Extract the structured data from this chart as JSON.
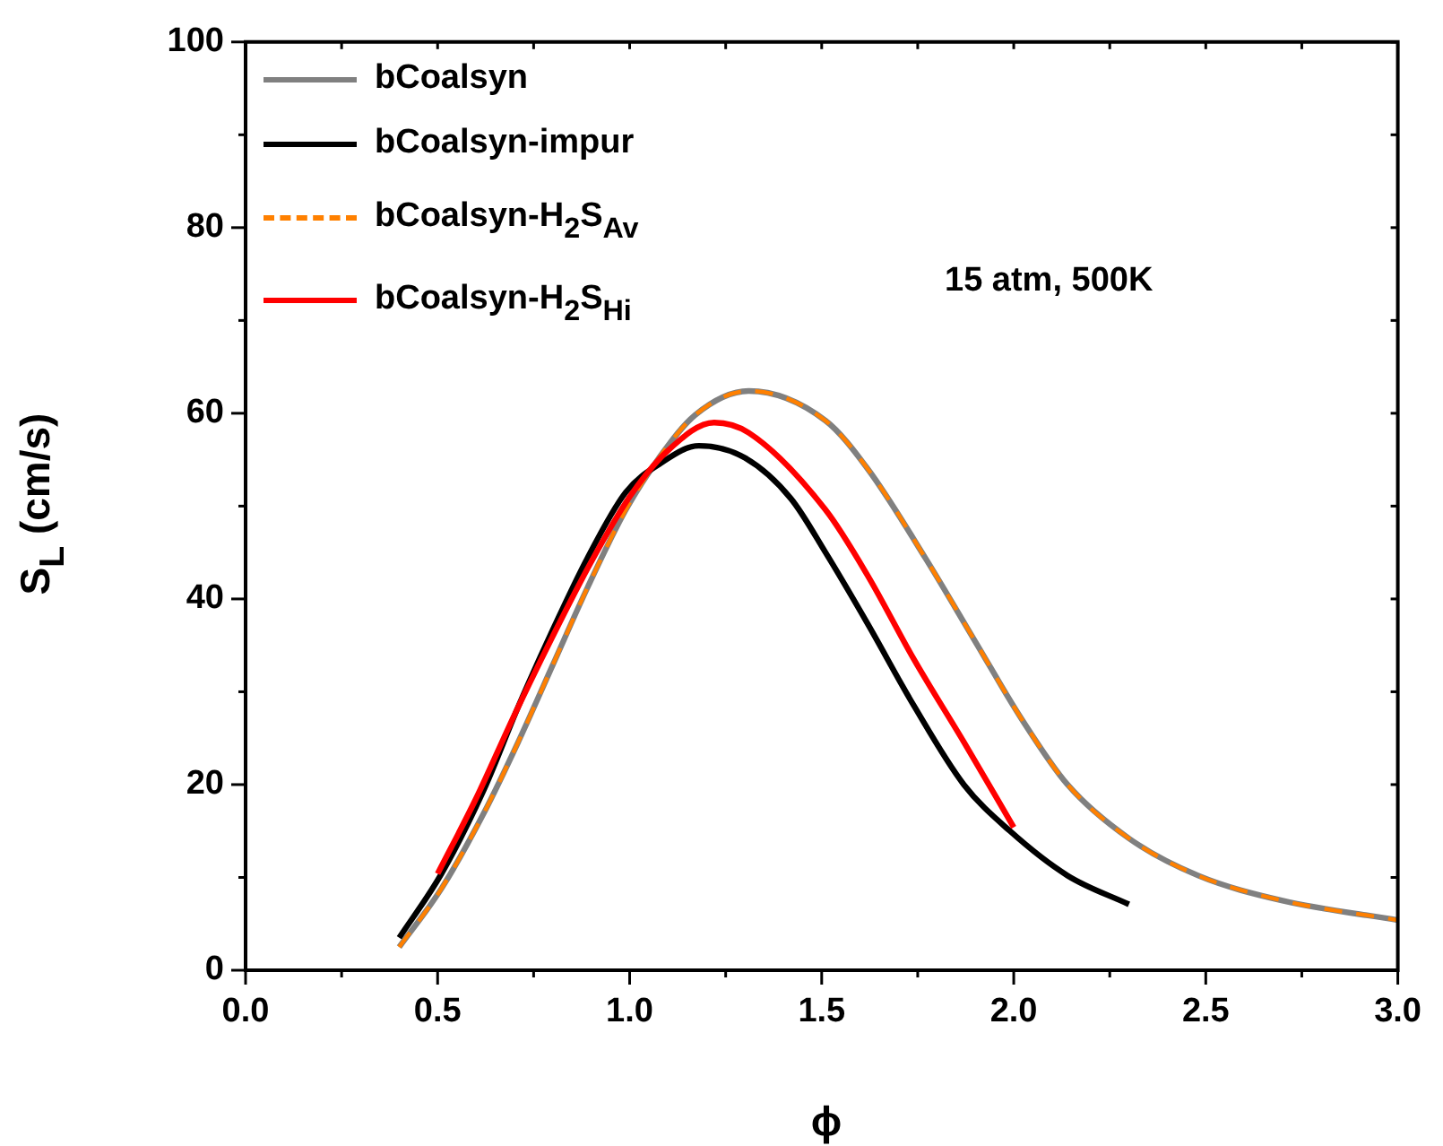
{
  "chart_data": {
    "type": "line",
    "xlabel": "ϕ",
    "ylabel": "S$_{L}$ (cm/s)",
    "xlim": [
      0,
      3
    ],
    "ylim": [
      0,
      100
    ],
    "xticks": [
      {
        "value": 0,
        "label": "0.0"
      },
      {
        "value": 0.25,
        "label": null
      },
      {
        "value": 0.5,
        "label": "0.5"
      },
      {
        "value": 0.75,
        "label": null
      },
      {
        "value": 1,
        "label": "1.0"
      },
      {
        "value": 1.25,
        "label": null
      },
      {
        "value": 1.5,
        "label": "1.5"
      },
      {
        "value": 1.75,
        "label": null
      },
      {
        "value": 2,
        "label": "2.0"
      },
      {
        "value": 2.25,
        "label": null
      },
      {
        "value": 2.5,
        "label": "2.5"
      },
      {
        "value": 2.75,
        "label": null
      },
      {
        "value": 3,
        "label": "3.0"
      }
    ],
    "yticks": [
      0,
      {
        "value": 10,
        "label": null
      },
      20,
      {
        "value": 30,
        "label": null
      },
      40,
      {
        "value": 50,
        "label": null
      },
      60,
      {
        "value": 70,
        "label": null
      },
      80,
      {
        "value": 90,
        "label": null
      },
      100
    ],
    "grid": false,
    "legend": "top left",
    "marker": "none",
    "annotations": [
      "15 atm,  500K"
    ],
    "series": [
      {
        "name": "bCoalsyn",
        "color": "#808080",
        "line_style": "solid",
        "x": [
          0.4,
          0.51,
          0.62,
          0.71,
          0.8,
          0.89,
          0.99,
          1.08,
          1.17,
          1.31,
          1.51,
          1.62,
          1.77,
          1.9,
          2.02,
          2.14,
          2.3,
          2.48,
          2.7,
          3.0
        ],
        "values": [
          2.5,
          8.8,
          16.9,
          24.6,
          32.9,
          41.2,
          49.6,
          55.4,
          59.8,
          62.4,
          59.2,
          54,
          44.4,
          35.4,
          27.1,
          20,
          14.2,
          10.2,
          7.5,
          5.4
        ]
      },
      {
        "name": "bCoalsyn-impur",
        "color": "#000000",
        "line_style": "solid",
        "x": [
          0.4,
          0.51,
          0.62,
          0.71,
          0.8,
          0.89,
          0.99,
          1.08,
          1.18,
          1.3,
          1.42,
          1.51,
          1.62,
          1.74,
          1.87,
          1.99,
          2.14,
          2.3
        ],
        "values": [
          3.5,
          10.4,
          19.4,
          28.4,
          36.7,
          44.4,
          51.5,
          54.6,
          56.5,
          55.2,
          50.8,
          45,
          37.3,
          28.5,
          20,
          15,
          10.2,
          7.1
        ]
      },
      {
        "name": "bCoalsyn-H$_{2}$S$_{Av}$",
        "color": "#ff8000",
        "line_style": "dashed",
        "x": [
          0.4,
          0.51,
          0.62,
          0.71,
          0.8,
          0.89,
          0.99,
          1.08,
          1.17,
          1.31,
          1.51,
          1.62,
          1.77,
          1.9,
          2.02,
          2.14,
          2.3,
          2.48,
          2.7,
          3.0
        ],
        "values": [
          2.5,
          8.8,
          16.9,
          24.6,
          32.9,
          41.2,
          49.6,
          55.4,
          59.8,
          62.4,
          59.2,
          54,
          44.4,
          35.4,
          27.1,
          20,
          14.2,
          10.2,
          7.5,
          5.4
        ]
      },
      {
        "name": "bCoalsyn-H$_{2}$S$_{Hi}$",
        "color": "#ff0000",
        "line_style": "solid",
        "x": [
          0.5,
          0.6,
          0.7,
          0.8,
          0.9,
          1.0,
          1.1,
          1.22,
          1.31,
          1.51,
          1.62,
          1.74,
          1.87,
          2.0
        ],
        "values": [
          10.4,
          18.5,
          27.5,
          36,
          44,
          51,
          56,
          59,
          57.9,
          49.6,
          42.5,
          33.5,
          24.6,
          15.4
        ]
      }
    ]
  }
}
